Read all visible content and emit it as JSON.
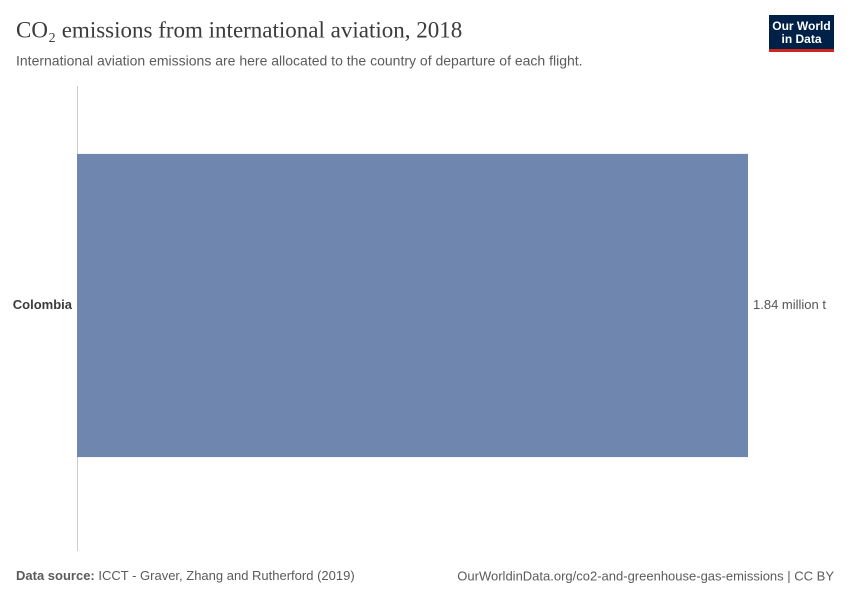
{
  "chart_data": {
    "type": "hbar",
    "title": "CO₂ emissions from international aviation, 2018",
    "subtitle": "International aviation emissions are here allocated to the country of departure of each flight.",
    "categories": [
      "Colombia"
    ],
    "values": [
      1.84
    ],
    "value_labels": [
      "1.84 million t"
    ],
    "color": "#6f87ae",
    "source_label": "Data source:",
    "source": "ICCT - Graver, Zhang and Rutherford (2019)",
    "url": "OurWorldinData.org/co2-and-greenhouse-gas-emissions | CC BY",
    "logo": [
      "Our World",
      "in Data"
    ]
  }
}
